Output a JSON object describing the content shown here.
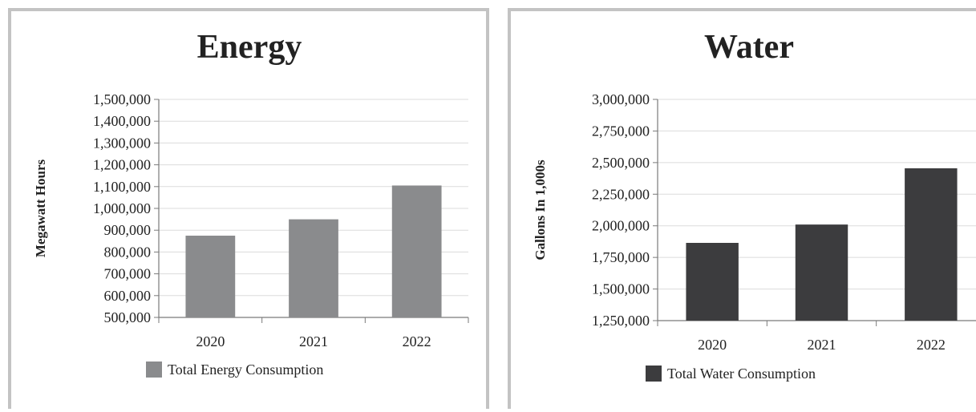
{
  "chart_data": [
    {
      "type": "bar",
      "title": "Energy",
      "ylabel": "Megawatt Hours",
      "xlabel": "",
      "categories": [
        "2020",
        "2021",
        "2022"
      ],
      "ylim": [
        500000,
        1500000
      ],
      "yticks": [
        500000,
        600000,
        700000,
        800000,
        900000,
        1000000,
        1100000,
        1200000,
        1300000,
        1400000,
        1500000
      ],
      "ytick_labels": [
        "500,000",
        "600,000",
        "700,000",
        "800,000",
        "900,000",
        "1,000,000",
        "1,100,000",
        "1,200,000",
        "1,300,000",
        "1,400,000",
        "1,500,000"
      ],
      "series": [
        {
          "name": "Total Energy Consumption",
          "values": [
            875000,
            950000,
            1105000
          ],
          "color": "#8a8b8d"
        }
      ],
      "grid": true,
      "legend": "bottom"
    },
    {
      "type": "bar",
      "title": "Water",
      "ylabel": "Gallons In 1,000s",
      "xlabel": "",
      "categories": [
        "2020",
        "2021",
        "2022"
      ],
      "ylim": [
        1250000,
        3000000
      ],
      "yticks": [
        1250000,
        1500000,
        1750000,
        2000000,
        2250000,
        2500000,
        2750000,
        3000000
      ],
      "ytick_labels": [
        "1,250,000",
        "1,500,000",
        "1,750,000",
        "2,000,000",
        "2,250,000",
        "2,500,000",
        "2,750,000",
        "3,000,000"
      ],
      "series": [
        {
          "name": "Total Water Consumption",
          "values": [
            1865000,
            2010000,
            2455000
          ],
          "color": "#3c3c3e"
        }
      ],
      "grid": true,
      "legend": "bottom"
    }
  ]
}
